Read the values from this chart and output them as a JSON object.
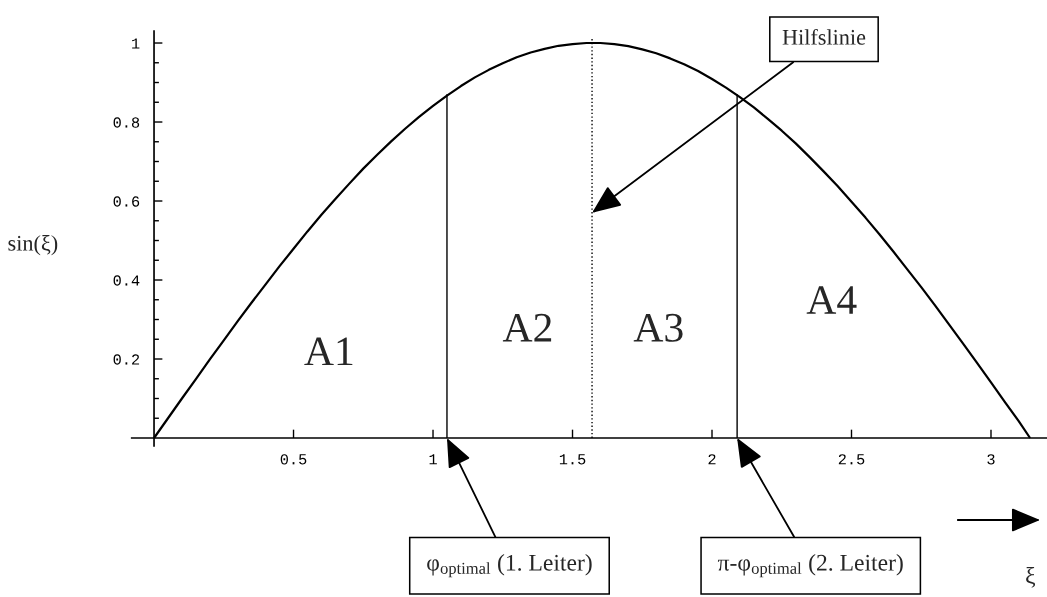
{
  "chart_data": {
    "type": "line",
    "xlabel": "ξ",
    "ylabel": "sin(ξ)",
    "xlim": [
      -0.08,
      3.2
    ],
    "ylim": [
      -0.02,
      1.03
    ],
    "xticks": [
      0.5,
      1,
      1.5,
      2,
      2.5,
      3
    ],
    "yticks": [
      {
        "value": 0.05,
        "label": null
      },
      {
        "value": 0.1,
        "label": null
      },
      {
        "value": 0.15,
        "label": null
      },
      0.2,
      {
        "value": 0.25,
        "label": null
      },
      {
        "value": 0.3,
        "label": null
      },
      {
        "value": 0.35,
        "label": null
      },
      0.4,
      {
        "value": 0.45,
        "label": null
      },
      {
        "value": 0.5,
        "label": null
      },
      {
        "value": 0.55,
        "label": null
      },
      0.6,
      {
        "value": 0.65,
        "label": null
      },
      {
        "value": 0.7,
        "label": null
      },
      {
        "value": 0.75,
        "label": null
      },
      0.8,
      {
        "value": 0.85,
        "label": null
      },
      {
        "value": 0.9,
        "label": null
      },
      {
        "value": 0.95,
        "label": null
      },
      1
    ],
    "series": [
      {
        "color": "#000000",
        "x": [
          0,
          0.05,
          0.1,
          0.15,
          0.2,
          0.25,
          0.3,
          0.35,
          0.4,
          0.45,
          0.5,
          0.55,
          0.6,
          0.65,
          0.7,
          0.75,
          0.8,
          0.85,
          0.9,
          0.95,
          1.0,
          1.05,
          1.1,
          1.15,
          1.2,
          1.25,
          1.3,
          1.35,
          1.4,
          1.45,
          1.5,
          1.55,
          1.6,
          1.65,
          1.7,
          1.75,
          1.8,
          1.85,
          1.9,
          1.95,
          2.0,
          2.05,
          2.1,
          2.15,
          2.2,
          2.25,
          2.3,
          2.35,
          2.4,
          2.45,
          2.5,
          2.55,
          2.6,
          2.65,
          2.7,
          2.75,
          2.8,
          2.85,
          2.9,
          2.95,
          3.0,
          3.05,
          3.1,
          3.14
        ],
        "values": [
          0,
          0.05,
          0.1,
          0.149,
          0.199,
          0.247,
          0.296,
          0.343,
          0.389,
          0.435,
          0.479,
          0.523,
          0.565,
          0.605,
          0.644,
          0.682,
          0.717,
          0.751,
          0.783,
          0.813,
          0.841,
          0.867,
          0.891,
          0.913,
          0.932,
          0.949,
          0.964,
          0.976,
          0.985,
          0.993,
          0.997,
          1.0,
          1.0,
          0.997,
          0.992,
          0.984,
          0.974,
          0.961,
          0.946,
          0.929,
          0.909,
          0.887,
          0.863,
          0.837,
          0.808,
          0.778,
          0.746,
          0.711,
          0.675,
          0.638,
          0.598,
          0.558,
          0.516,
          0.472,
          0.427,
          0.382,
          0.335,
          0.287,
          0.239,
          0.19,
          0.141,
          0.091,
          0.042,
          0
        ]
      },
      {
        "type": "line",
        "color": "#000000",
        "x": [
          1.05,
          1.05
        ],
        "values": [
          0,
          0.87
        ]
      },
      {
        "type": "line",
        "color": "#000000",
        "x": [
          2.09,
          2.09
        ],
        "values": [
          0,
          0.87
        ]
      },
      {
        "type": "line",
        "color": "#000000",
        "x": [
          1.57,
          1.57
        ],
        "values": [
          0,
          1.01
        ],
        "line_style": "dotted"
      }
    ],
    "annotations": [
      "A1",
      "A2",
      "A3",
      "A4",
      {
        "text": "Hilfslinie",
        "x": 1.57,
        "y": 0.57
      },
      {
        "text": "φ$_{optimal}$ (1. Leiter)",
        "x": 1.05,
        "y": 0
      },
      {
        "text": "π-φ$_{optimal}$ (2. Leiter)",
        "x": 2.09,
        "y": 0
      }
    ],
    "grid": false,
    "marker": "none",
    "line_style": "solid"
  }
}
